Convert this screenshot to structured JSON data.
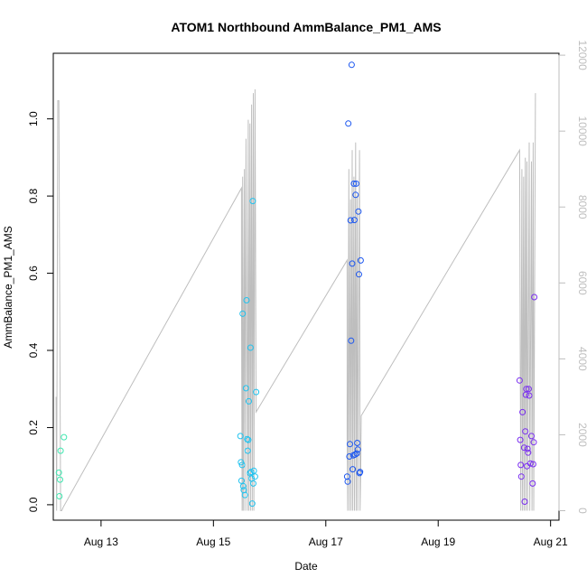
{
  "chart_data": {
    "type": "scatter",
    "title": "ATOM1 Northbound AmmBalance_PM1_AMS",
    "xlabel": "Date",
    "ylabel": "AmmBalance_PM1_AMS",
    "x_domain_days": [
      12.15,
      21.15
    ],
    "x_ticks": [
      {
        "day": 13,
        "label": "Aug 13"
      },
      {
        "day": 15,
        "label": "Aug 15"
      },
      {
        "day": 17,
        "label": "Aug 17"
      },
      {
        "day": 19,
        "label": "Aug 19"
      },
      {
        "day": 21,
        "label": "Aug 21"
      }
    ],
    "ylim": [
      -0.04,
      1.17
    ],
    "y_ticks": [
      0.0,
      0.2,
      0.4,
      0.6,
      0.8,
      1.0
    ],
    "y_tick_labels": [
      "0.0",
      "0.2",
      "0.4",
      "0.6",
      "0.8",
      "1.0"
    ],
    "y2lim": [
      -250,
      12050
    ],
    "y2_ticks": [
      0,
      2000,
      4000,
      6000,
      8000,
      10000,
      12000
    ],
    "y2_tick_labels": [
      "0",
      "2000",
      "4000",
      "6000",
      "8000",
      "10000",
      "12000"
    ],
    "colors": {
      "axis": "#000000",
      "secondary_axis": "#bebebe",
      "line": "#bebebe"
    },
    "series": [
      {
        "color": "#3ee8b0",
        "points": [
          [
            12.25,
            0.083
          ],
          [
            12.26,
            0.022
          ],
          [
            12.27,
            0.065
          ],
          [
            12.28,
            0.14
          ],
          [
            12.34,
            0.175
          ]
        ]
      },
      {
        "color": "#22c3ef",
        "points": [
          [
            15.48,
            0.178
          ],
          [
            15.49,
            0.11
          ],
          [
            15.5,
            0.062
          ],
          [
            15.51,
            0.103
          ],
          [
            15.52,
            0.495
          ],
          [
            15.53,
            0.048
          ],
          [
            15.54,
            0.038
          ],
          [
            15.56,
            0.025
          ],
          [
            15.58,
            0.302
          ],
          [
            15.59,
            0.53
          ],
          [
            15.6,
            0.17
          ],
          [
            15.61,
            0.14
          ],
          [
            15.62,
            0.168
          ],
          [
            15.63,
            0.268
          ],
          [
            15.65,
            0.082
          ],
          [
            15.66,
            0.407
          ],
          [
            15.67,
            0.085
          ],
          [
            15.68,
            0.068
          ],
          [
            15.69,
            0.003
          ],
          [
            15.7,
            0.787
          ],
          [
            15.71,
            0.055
          ],
          [
            15.72,
            0.088
          ],
          [
            15.74,
            0.073
          ],
          [
            15.76,
            0.292
          ]
        ]
      },
      {
        "color": "#1b56f0",
        "points": [
          [
            17.38,
            0.073
          ],
          [
            17.39,
            0.06
          ],
          [
            17.4,
            0.988
          ],
          [
            17.42,
            0.125
          ],
          [
            17.43,
            0.157
          ],
          [
            17.44,
            0.737
          ],
          [
            17.45,
            0.425
          ],
          [
            17.46,
            1.14
          ],
          [
            17.47,
            0.625
          ],
          [
            17.48,
            0.092
          ],
          [
            17.49,
            0.128
          ],
          [
            17.5,
            0.832
          ],
          [
            17.51,
            0.738
          ],
          [
            17.52,
            0.13
          ],
          [
            17.53,
            0.803
          ],
          [
            17.54,
            0.832
          ],
          [
            17.55,
            0.133
          ],
          [
            17.56,
            0.16
          ],
          [
            17.57,
            0.143
          ],
          [
            17.58,
            0.76
          ],
          [
            17.59,
            0.597
          ],
          [
            17.6,
            0.082
          ],
          [
            17.61,
            0.085
          ],
          [
            17.62,
            0.633
          ]
        ]
      },
      {
        "color": "#7a2ef0",
        "points": [
          [
            20.45,
            0.322
          ],
          [
            20.46,
            0.168
          ],
          [
            20.47,
            0.103
          ],
          [
            20.48,
            0.073
          ],
          [
            20.5,
            0.24
          ],
          [
            20.53,
            0.148
          ],
          [
            20.54,
            0.008
          ],
          [
            20.55,
            0.19
          ],
          [
            20.56,
            0.285
          ],
          [
            20.57,
            0.3
          ],
          [
            20.58,
            0.1
          ],
          [
            20.59,
            0.145
          ],
          [
            20.6,
            0.135
          ],
          [
            20.61,
            0.3
          ],
          [
            20.62,
            0.283
          ],
          [
            20.64,
            0.107
          ],
          [
            20.66,
            0.178
          ],
          [
            20.68,
            0.055
          ],
          [
            20.69,
            0.105
          ],
          [
            20.7,
            0.162
          ],
          [
            20.71,
            0.538
          ]
        ]
      }
    ],
    "line_series": {
      "axis": "secondary",
      "points": [
        [
          12.2,
          3000
        ],
        [
          12.21,
          0
        ],
        [
          12.23,
          10800
        ],
        [
          12.25,
          10800
        ],
        [
          12.28,
          0
        ],
        [
          12.3,
          0
        ],
        [
          12.33,
          100
        ],
        [
          15.5,
          8500
        ],
        [
          15.5,
          6000
        ],
        [
          15.51,
          0
        ],
        [
          15.52,
          8800
        ],
        [
          15.53,
          0
        ],
        [
          15.55,
          9000
        ],
        [
          15.56,
          0
        ],
        [
          15.58,
          9800
        ],
        [
          15.6,
          0
        ],
        [
          15.62,
          10300
        ],
        [
          15.63,
          0
        ],
        [
          15.65,
          10200
        ],
        [
          15.66,
          0
        ],
        [
          15.68,
          10700
        ],
        [
          15.69,
          0
        ],
        [
          15.71,
          11000
        ],
        [
          15.72,
          0
        ],
        [
          15.74,
          11100
        ],
        [
          15.76,
          2600
        ],
        [
          17.38,
          6600
        ],
        [
          17.38,
          2000
        ],
        [
          17.39,
          0
        ],
        [
          17.41,
          9000
        ],
        [
          17.42,
          0
        ],
        [
          17.44,
          8200
        ],
        [
          17.45,
          0
        ],
        [
          17.47,
          9500
        ],
        [
          17.48,
          0
        ],
        [
          17.5,
          8800
        ],
        [
          17.51,
          0
        ],
        [
          17.53,
          9700
        ],
        [
          17.54,
          0
        ],
        [
          17.56,
          8300
        ],
        [
          17.57,
          0
        ],
        [
          17.6,
          9500
        ],
        [
          17.61,
          0
        ],
        [
          17.62,
          1000
        ],
        [
          17.63,
          2500
        ],
        [
          20.45,
          9500
        ],
        [
          20.46,
          4000
        ],
        [
          20.47,
          0
        ],
        [
          20.49,
          9000
        ],
        [
          20.5,
          0
        ],
        [
          20.52,
          8800
        ],
        [
          20.53,
          0
        ],
        [
          20.55,
          9300
        ],
        [
          20.56,
          0
        ],
        [
          20.58,
          9200
        ],
        [
          20.59,
          0
        ],
        [
          20.62,
          9700
        ],
        [
          20.63,
          0
        ],
        [
          20.66,
          9200
        ],
        [
          20.67,
          0
        ],
        [
          20.69,
          9700
        ],
        [
          20.7,
          0
        ],
        [
          20.73,
          11000
        ]
      ]
    }
  }
}
